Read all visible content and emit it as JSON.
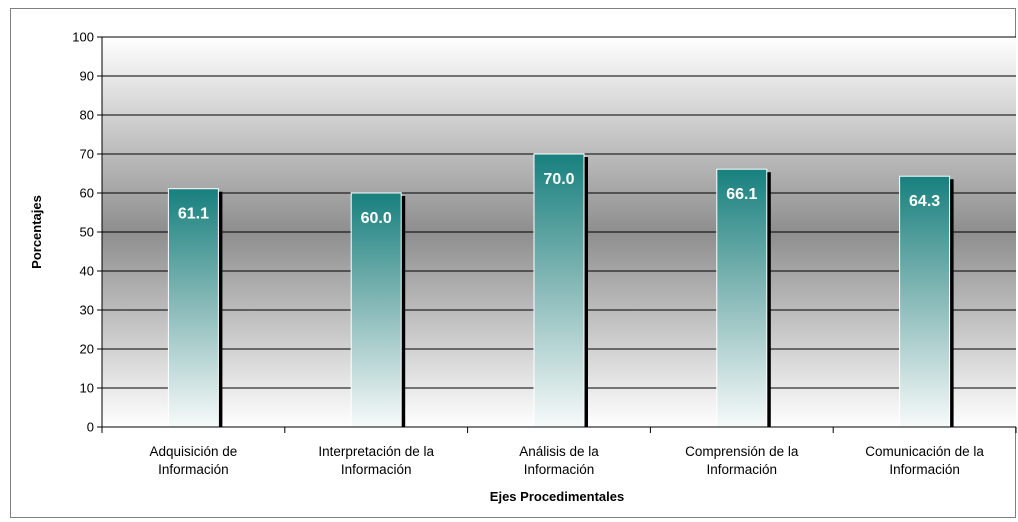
{
  "chart_data": {
    "type": "bar",
    "title": "",
    "xlabel": "Ejes Procedimentales",
    "ylabel": "Porcentajes",
    "ylim": [
      0,
      100
    ],
    "yticks": [
      0,
      10,
      20,
      30,
      40,
      50,
      60,
      70,
      80,
      90,
      100
    ],
    "grid": true,
    "legend": "none",
    "categories": [
      [
        "Adquisición de",
        "Información"
      ],
      [
        "Interpretación de la",
        "Información"
      ],
      [
        "Análisis de la",
        "Información"
      ],
      [
        "Comprensión de la",
        "Información"
      ],
      [
        "Comunicación de la",
        "Información"
      ]
    ],
    "values": [
      61.1,
      60.0,
      70.0,
      66.1,
      64.3
    ],
    "data_labels": [
      "61.1",
      "60.0",
      "70.0",
      "66.1",
      "64.3"
    ],
    "colors": {
      "bar_top": "#17807e",
      "bar_bottom": "#f7fafa",
      "bar_shadow": "#000000",
      "plot_bg_top": "#ffffff",
      "plot_bg_mid": "#8e8e8e",
      "grid": "#000000",
      "data_label": "#ffffff"
    }
  }
}
